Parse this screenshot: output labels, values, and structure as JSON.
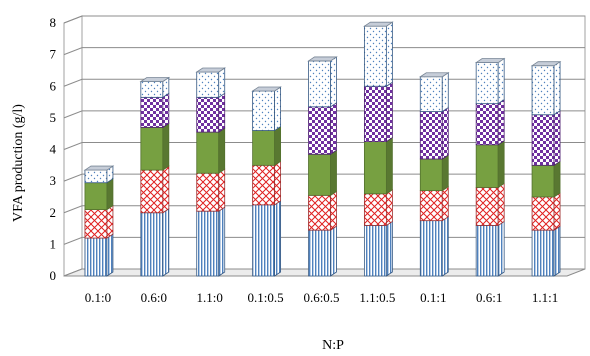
{
  "chart_data": {
    "type": "bar",
    "stacked": true,
    "three_d": true,
    "xlabel": "N:P",
    "ylabel": "VFA production (g/l)",
    "ylim": [
      0,
      8
    ],
    "yticks": [
      "0",
      "1",
      "2",
      "3",
      "4",
      "5",
      "6",
      "7",
      "8"
    ],
    "grid": true,
    "categories": [
      "0.1:0",
      "0.6:0",
      "1.1:0",
      "0.1:0.5",
      "0.6:0.5",
      "1.1:0.5",
      "0.1:1",
      "0.6:1",
      "1.1:1"
    ],
    "series": [
      {
        "values": [
          1.2,
          2.0,
          2.05,
          2.25,
          1.45,
          1.6,
          1.75,
          1.6,
          1.45
        ],
        "color": "#4f81bd",
        "pattern": "vertical-lines"
      },
      {
        "values": [
          0.9,
          1.35,
          1.2,
          1.25,
          1.1,
          1.0,
          0.95,
          1.2,
          1.05
        ],
        "color": "#e04040",
        "pattern": "diagonal-cross"
      },
      {
        "values": [
          0.85,
          1.35,
          1.3,
          1.1,
          1.3,
          1.65,
          1.0,
          1.35,
          1.0
        ],
        "color": "#77a041",
        "pattern": "solid"
      },
      {
        "values": [
          0.0,
          0.95,
          1.1,
          0.0,
          1.5,
          1.75,
          1.5,
          1.3,
          1.6
        ],
        "color": "#7030a0",
        "pattern": "checker"
      },
      {
        "values": [
          0.4,
          0.5,
          0.8,
          1.25,
          1.45,
          1.9,
          1.1,
          1.3,
          1.55
        ],
        "color": "#4f81bd",
        "pattern": "dots"
      }
    ]
  }
}
